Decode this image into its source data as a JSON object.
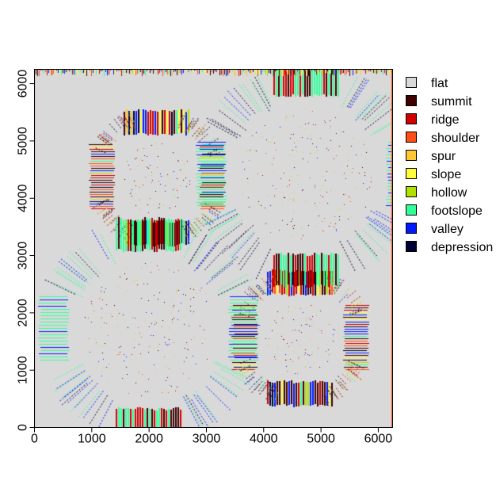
{
  "legend": {
    "placement": "right",
    "items": [
      {
        "label": "flat",
        "color": "#d9d9d9"
      },
      {
        "label": "summit",
        "color": "#3f0000"
      },
      {
        "label": "ridge",
        "color": "#d10000"
      },
      {
        "label": "shoulder",
        "color": "#ff4f14"
      },
      {
        "label": "spur",
        "color": "#ffc733"
      },
      {
        "label": "slope",
        "color": "#fffb3a"
      },
      {
        "label": "hollow",
        "color": "#b0e000"
      },
      {
        "label": "footslope",
        "color": "#33ff99"
      },
      {
        "label": "valley",
        "color": "#0019ff"
      },
      {
        "label": "depression",
        "color": "#000033"
      }
    ]
  },
  "chart_data": {
    "type": "heatmap",
    "title": "",
    "xlabel": "",
    "ylabel": "",
    "xlim": [
      0,
      6250
    ],
    "ylim": [
      0,
      6250
    ],
    "x_ticks": [
      0,
      1000,
      2000,
      3000,
      4000,
      5000,
      6000
    ],
    "y_ticks": [
      0,
      1000,
      2000,
      3000,
      4000,
      5000,
      6000
    ],
    "background_class": "flat",
    "features": [
      {
        "kind": "ring-of-mounds",
        "center": [
          2150,
          4350
        ]
      },
      {
        "kind": "ring-of-mounds",
        "center": [
          4650,
          1550
        ]
      },
      {
        "kind": "ring-of-channels",
        "center": [
          4750,
          4400
        ]
      },
      {
        "kind": "ring-of-channels",
        "center": [
          2000,
          1700
        ]
      }
    ]
  }
}
